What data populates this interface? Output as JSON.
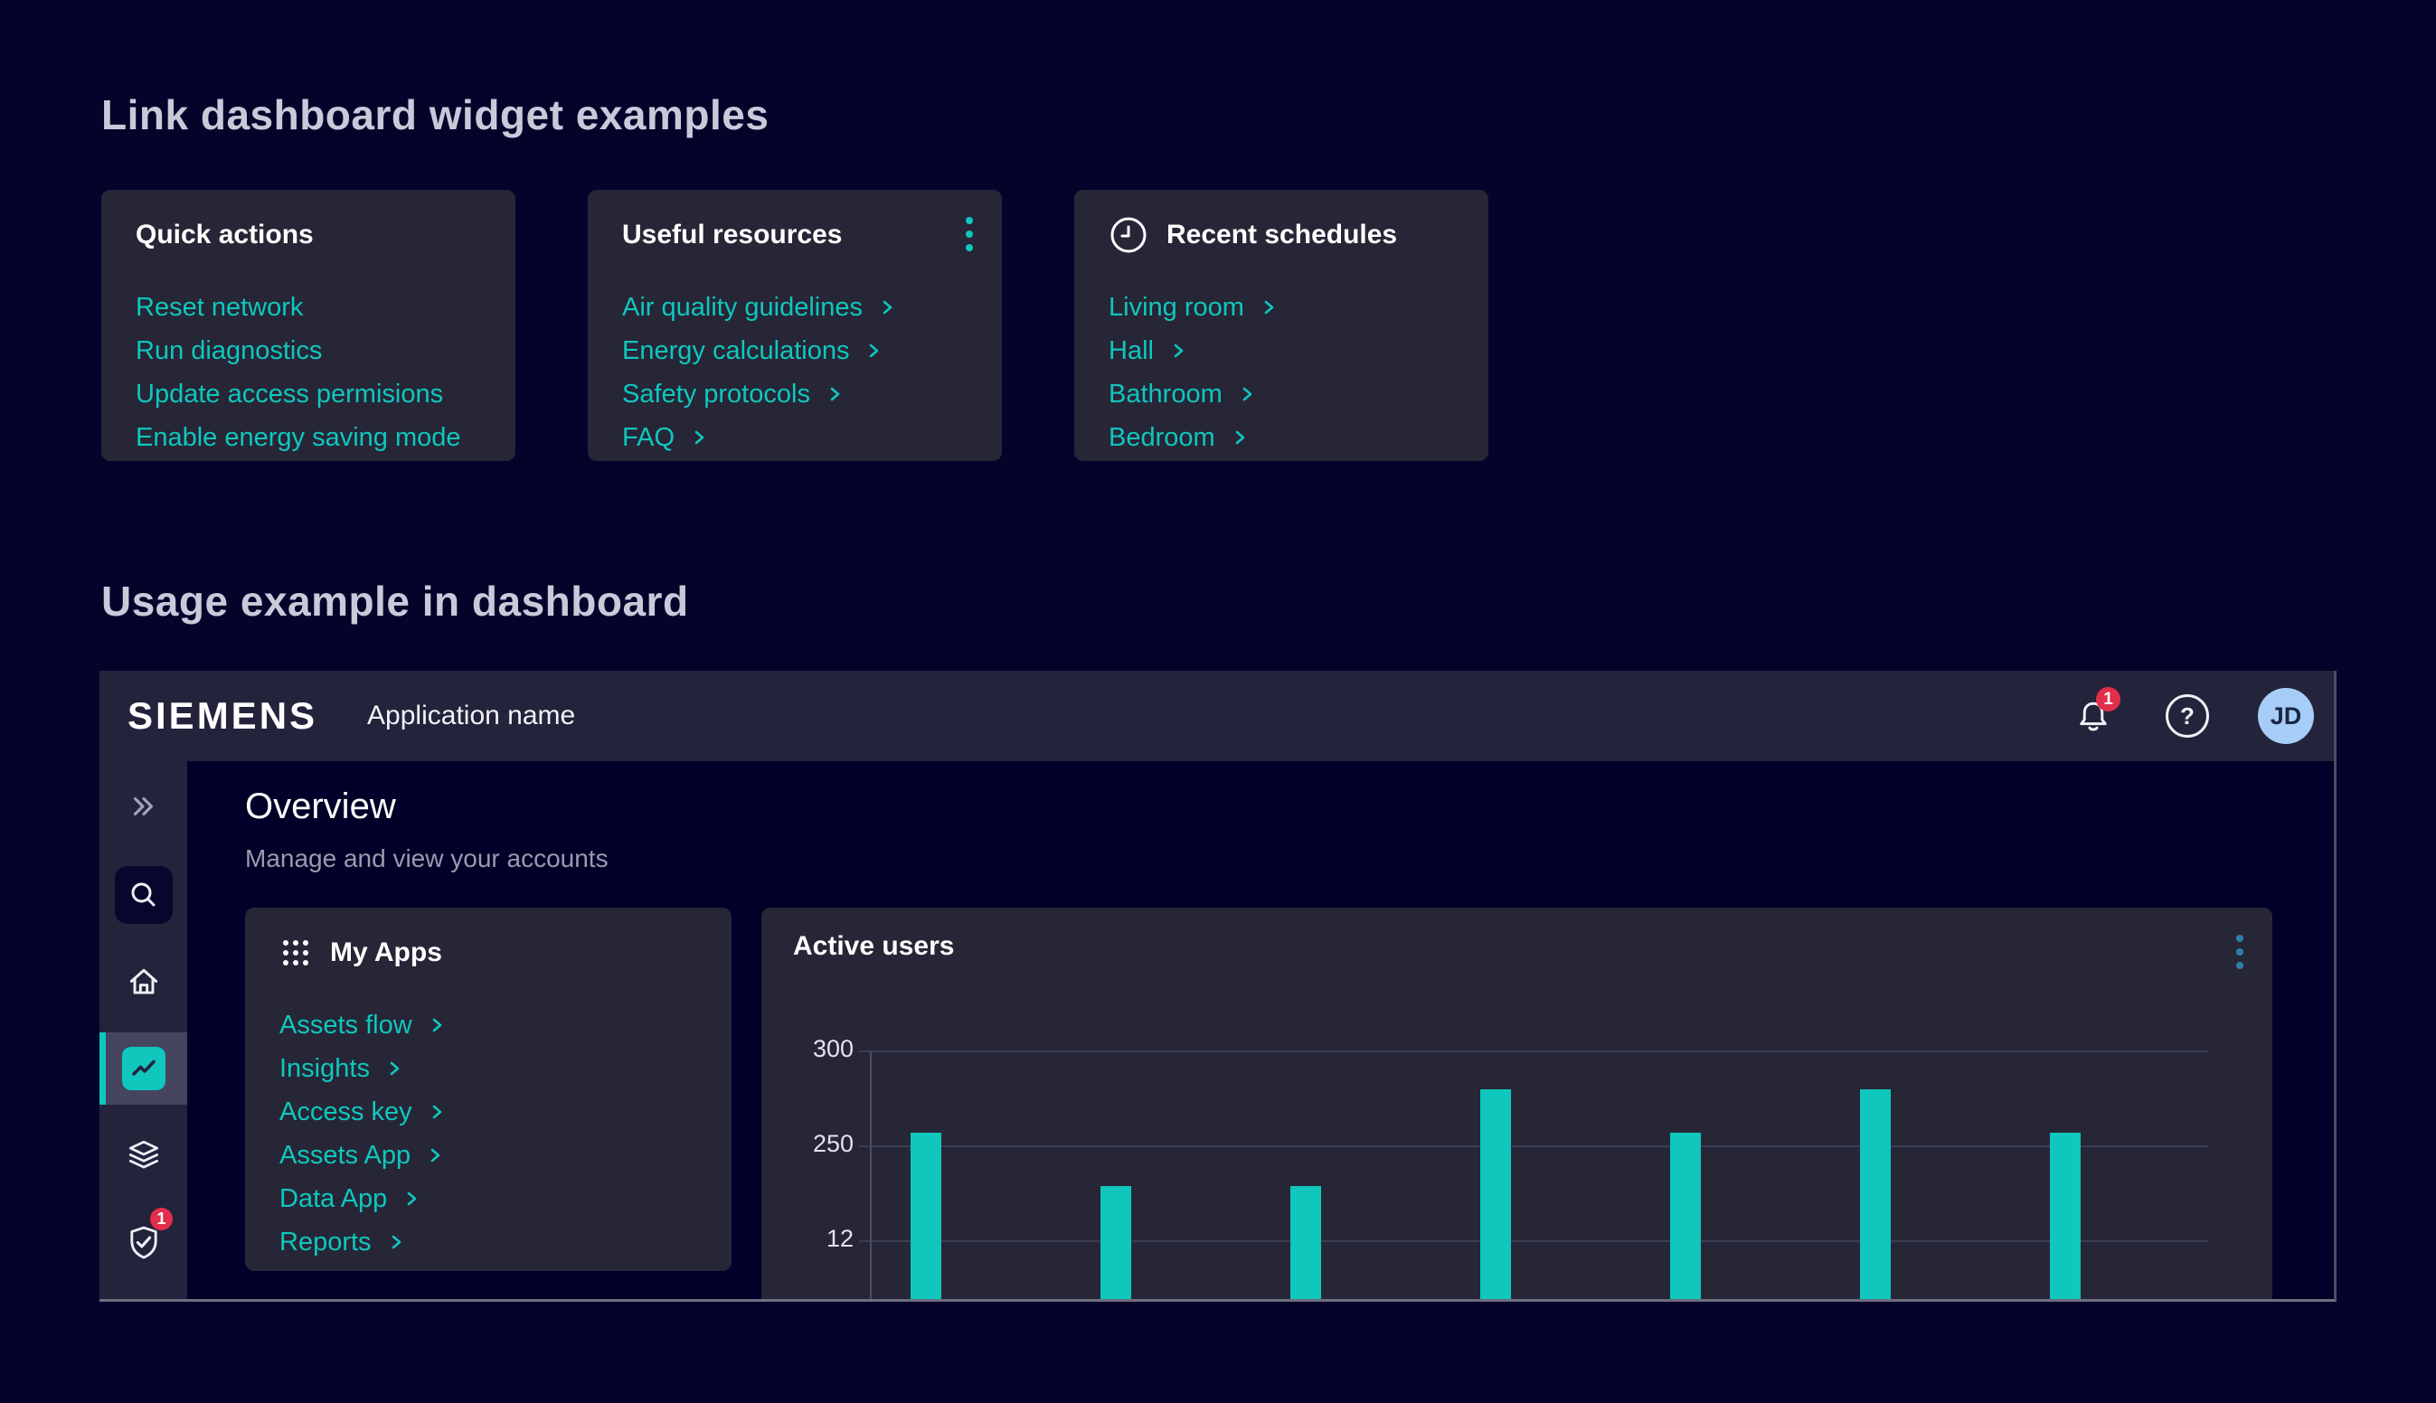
{
  "page": {
    "heading_widgets": "Link dashboard widget examples",
    "heading_usage": "Usage example in dashboard"
  },
  "colors": {
    "background": "#04042b",
    "card_background": "#262637",
    "appbar_background": "#23233c",
    "content_background": "#000028",
    "accent_teal": "#0fc7bd",
    "alert_red": "#e22e4b",
    "avatar_blue": "#a6cdf7",
    "kebab_blue": "#2e80a9"
  },
  "widgets": {
    "quick_actions": {
      "title": "Quick actions",
      "links": [
        "Reset network",
        "Run diagnostics",
        "Update access permisions",
        "Enable energy saving mode"
      ]
    },
    "useful_resources": {
      "title": "Useful resources",
      "kebab_icon": "kebab-menu-icon",
      "links": [
        "Air quality guidelines",
        "Energy calculations",
        "Safety protocols",
        "FAQ"
      ]
    },
    "recent_schedules": {
      "title": "Recent schedules",
      "icon": "clock-icon",
      "links": [
        "Living room",
        "Hall",
        "Bathroom",
        "Bedroom"
      ]
    }
  },
  "dashboard": {
    "header": {
      "brand": "SIEMENS",
      "app_name": "Application name",
      "notification_count": "1",
      "help_glyph": "?",
      "avatar_initials": "JD"
    },
    "sidebar": {
      "items": [
        "collapse-double-chevron",
        "search",
        "home",
        "line-chart (active)",
        "layers",
        "shield-check"
      ],
      "shield_badge_count": "1"
    },
    "overview": {
      "title": "Overview",
      "subtitle": "Manage and view your accounts"
    },
    "my_apps": {
      "title": "My Apps",
      "icon": "app-grid-icon",
      "links": [
        "Assets flow",
        "Insights",
        "Access key",
        "Assets App",
        "Data App",
        "Reports"
      ]
    },
    "active_users": {
      "title": "Active users",
      "kebab_icon": "kebab-menu-icon",
      "chart_data": {
        "type": "bar",
        "y_ticks": [
          "300",
          "250",
          "12"
        ],
        "values": [
          257,
          229,
          229,
          280,
          257,
          280,
          257
        ],
        "bar_color": "#0fc7bd",
        "grid": "horizontal",
        "x_labels_visible": false
      }
    }
  }
}
